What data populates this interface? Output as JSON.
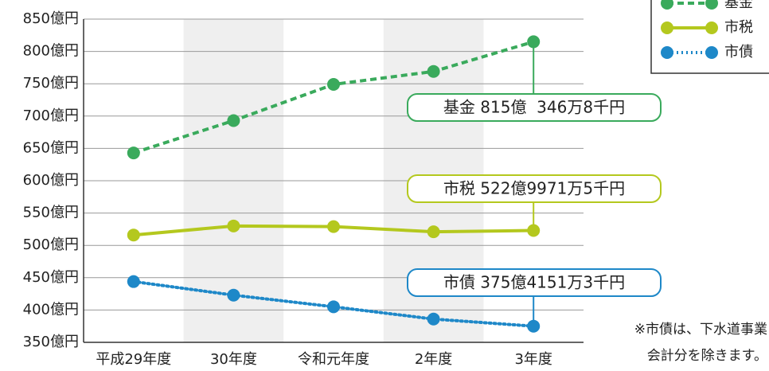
{
  "chart_data": {
    "type": "line",
    "categories": [
      "平成29年度",
      "30年度",
      "令和元年度",
      "2年度",
      "3年度"
    ],
    "series": [
      {
        "name": "基金",
        "color": "#3aaa5c",
        "dash": "dashed",
        "values": [
          643,
          693,
          749,
          769,
          815
        ],
        "annotation": "基金 815億  346万8千円"
      },
      {
        "name": "市税",
        "color": "#b4c81e",
        "dash": "solid",
        "values": [
          516,
          530,
          529,
          521,
          523
        ],
        "annotation": "市税 522億9971万5千円"
      },
      {
        "name": "市債",
        "color": "#1e88c8",
        "dash": "dotted",
        "values": [
          444,
          423,
          405,
          386,
          375
        ],
        "annotation": "市債 375億4151万3千円"
      }
    ],
    "ylim": [
      350,
      850
    ],
    "yticks": [
      {
        "value": 350,
        "label": "350億円"
      },
      {
        "value": 400,
        "label": "400億円"
      },
      {
        "value": 450,
        "label": "450億円"
      },
      {
        "value": 500,
        "label": "500億円"
      },
      {
        "value": 550,
        "label": "550億円"
      },
      {
        "value": 600,
        "label": "600億円"
      },
      {
        "value": 650,
        "label": "650億円"
      },
      {
        "value": 700,
        "label": "700億円"
      },
      {
        "value": 750,
        "label": "750億円"
      },
      {
        "value": 800,
        "label": "800億円"
      },
      {
        "value": 850,
        "label": "850億円"
      }
    ],
    "grid": true,
    "legend": "top-right",
    "note": [
      "※市債は、下水道事業",
      "会計分を除きます。"
    ]
  }
}
